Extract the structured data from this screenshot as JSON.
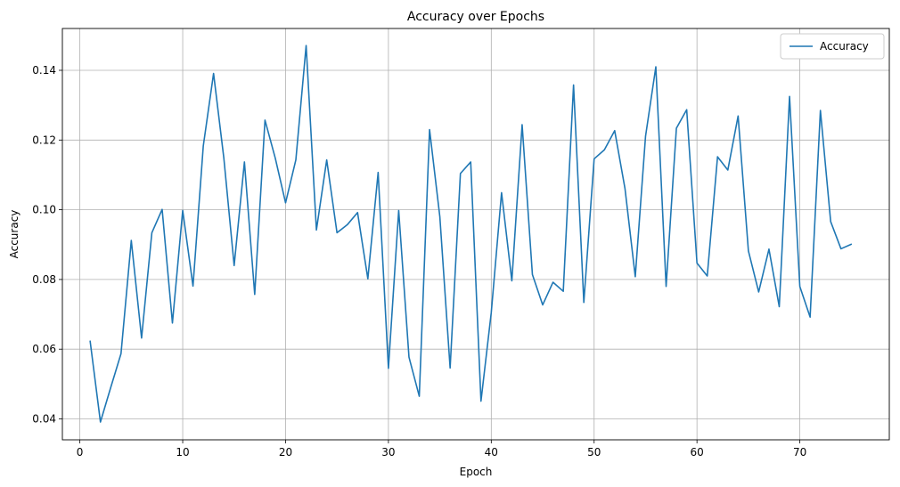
{
  "chart_data": {
    "type": "line",
    "title": "Accuracy over Epochs",
    "xlabel": "Epoch",
    "ylabel": "Accuracy",
    "xlim": [
      -1.7,
      78.7
    ],
    "ylim": [
      0.034,
      0.152
    ],
    "xticks": [
      0,
      10,
      20,
      30,
      40,
      50,
      60,
      70
    ],
    "yticks": [
      0.04,
      0.06,
      0.08,
      0.1,
      0.12,
      0.14
    ],
    "ytick_labels": [
      "0.04",
      "0.06",
      "0.08",
      "0.10",
      "0.12",
      "0.14"
    ],
    "grid": true,
    "legend_position": "top-right",
    "series": [
      {
        "name": "Accuracy",
        "color": "#1f77b4",
        "x": [
          1,
          2,
          3,
          4,
          5,
          6,
          7,
          8,
          9,
          10,
          11,
          12,
          13,
          14,
          15,
          16,
          17,
          18,
          19,
          20,
          21,
          22,
          23,
          24,
          25,
          26,
          27,
          28,
          29,
          30,
          31,
          32,
          33,
          34,
          35,
          36,
          37,
          38,
          39,
          40,
          41,
          42,
          43,
          44,
          45,
          46,
          47,
          48,
          49,
          50,
          51,
          52,
          53,
          54,
          55,
          56,
          57,
          58,
          59,
          60,
          61,
          62,
          63,
          64,
          65,
          66,
          67,
          68,
          69,
          70,
          71,
          72,
          73,
          74,
          75
        ],
        "y": [
          0.0623,
          0.0391,
          0.049,
          0.0587,
          0.0912,
          0.0632,
          0.0934,
          0.1001,
          0.0675,
          0.0998,
          0.0781,
          0.1183,
          0.1391,
          0.1148,
          0.084,
          0.1137,
          0.0757,
          0.1257,
          0.1148,
          0.102,
          0.1143,
          0.1471,
          0.0942,
          0.1143,
          0.0934,
          0.0957,
          0.0992,
          0.0802,
          0.1107,
          0.0545,
          0.0998,
          0.0577,
          0.0465,
          0.123,
          0.098,
          0.0546,
          0.1104,
          0.1137,
          0.0451,
          0.0705,
          0.1049,
          0.0796,
          0.1244,
          0.0814,
          0.0727,
          0.0792,
          0.0766,
          0.1358,
          0.0734,
          0.1146,
          0.1172,
          0.1227,
          0.1061,
          0.0808,
          0.1211,
          0.141,
          0.078,
          0.1234,
          0.1287,
          0.0847,
          0.081,
          0.1152,
          0.1114,
          0.1269,
          0.0882,
          0.0764,
          0.0887,
          0.0722,
          0.1325,
          0.078,
          0.0692,
          0.1285,
          0.0966,
          0.0888,
          0.0901
        ]
      }
    ]
  }
}
